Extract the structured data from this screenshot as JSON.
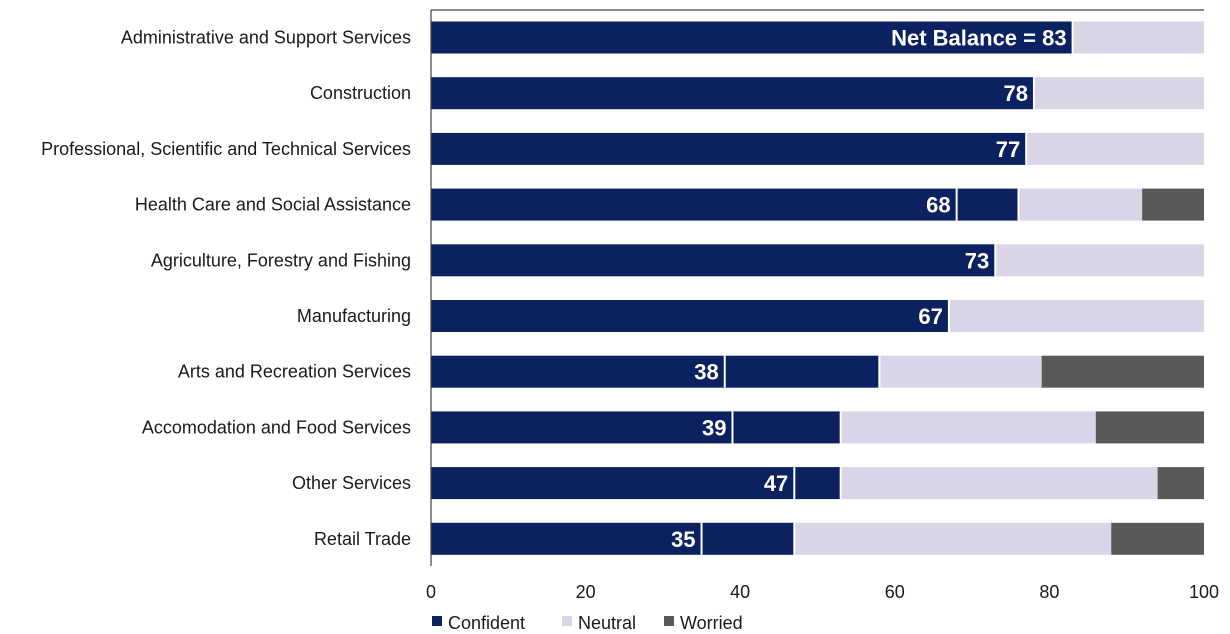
{
  "chart_data": {
    "type": "bar",
    "orientation": "horizontal",
    "stacked": true,
    "categories": [
      "Administrative and Support Services",
      "Construction",
      "Professional, Scientific and Technical Services",
      "Health Care and Social Assistance",
      "Agriculture, Forestry and Fishing",
      "Manufacturing",
      "Arts and Recreation Services",
      "Accomodation and Food Services",
      "Other Services",
      "Retail Trade"
    ],
    "series": [
      {
        "name": "Confident",
        "color": "#0b2160",
        "values": [
          83,
          78,
          77,
          76,
          73,
          67,
          58,
          53,
          53,
          47
        ]
      },
      {
        "name": "Neutral",
        "color": "#d9d5e6",
        "values": [
          17,
          22,
          23,
          16,
          27,
          33,
          21,
          33,
          41,
          41
        ]
      },
      {
        "name": "Worried",
        "color": "#595959",
        "values": [
          0,
          0,
          0,
          8,
          0,
          0,
          21,
          14,
          6,
          12
        ]
      }
    ],
    "net_balance": [
      83,
      78,
      77,
      68,
      73,
      67,
      38,
      39,
      47,
      35
    ],
    "net_balance_labels": [
      "Net Balance = 83",
      "78",
      "77",
      "68",
      "73",
      "67",
      "38",
      "39",
      "47",
      "35"
    ],
    "x_ticks": [
      "0",
      "20",
      "40",
      "60",
      "80",
      "100"
    ],
    "xlim": [
      0,
      100
    ],
    "grid": false,
    "legend_position": "bottom-center"
  }
}
